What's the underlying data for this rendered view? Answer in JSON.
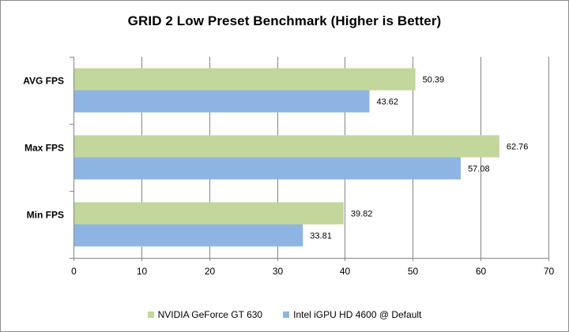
{
  "chart_data": {
    "type": "bar",
    "orientation": "horizontal",
    "title": "GRID 2 Low Preset Benchmark (Higher is Better)",
    "xlabel": "",
    "ylabel": "",
    "categories": [
      "AVG FPS",
      "Max FPS",
      "Min FPS"
    ],
    "xlim": [
      0,
      70
    ],
    "xticks": [
      0,
      10,
      20,
      30,
      40,
      50,
      60,
      70
    ],
    "grid": true,
    "legend_position": "bottom",
    "series": [
      {
        "name": "NVIDIA GeForce GT 630",
        "color": "#c3d69b",
        "values": [
          50.39,
          62.76,
          39.82
        ]
      },
      {
        "name": "Intel iGPU HD 4600 @ Default",
        "color": "#8eb4e3",
        "values": [
          43.62,
          57.08,
          33.81
        ]
      }
    ]
  }
}
